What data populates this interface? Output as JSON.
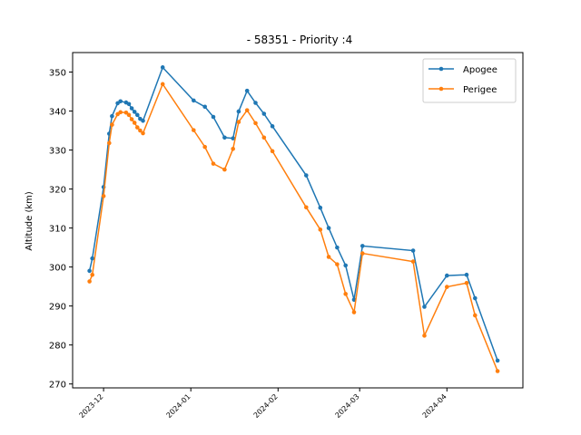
{
  "chart_data": {
    "type": "line",
    "title": "- 58351 - Priority :4",
    "xlabel": "",
    "ylabel": "Altitude (km)",
    "ylim": [
      269,
      355
    ],
    "xlim": [
      "2023-11-20",
      "2024-04-28"
    ],
    "yticks": [
      270,
      280,
      290,
      300,
      310,
      320,
      330,
      340,
      350
    ],
    "xticks": [
      {
        "date": "2023-12-01",
        "label": "2023-12"
      },
      {
        "date": "2024-01-01",
        "label": "2024-01"
      },
      {
        "date": "2024-02-01",
        "label": "2024-02"
      },
      {
        "date": "2024-03-01",
        "label": "2024-03"
      },
      {
        "date": "2024-04-01",
        "label": "2024-04"
      }
    ],
    "grid": false,
    "legend_position": "top-right",
    "series": [
      {
        "name": "Apogee",
        "color": "#1f77b4",
        "points": [
          [
            "2023-11-26",
            299.0
          ],
          [
            "2023-11-27",
            302.2
          ],
          [
            "2023-12-01",
            320.5
          ],
          [
            "2023-12-03",
            334.2
          ],
          [
            "2023-12-04",
            338.7
          ],
          [
            "2023-12-06",
            342.0
          ],
          [
            "2023-12-07",
            342.5
          ],
          [
            "2023-12-09",
            342.2
          ],
          [
            "2023-12-10",
            341.8
          ],
          [
            "2023-12-11",
            340.7
          ],
          [
            "2023-12-12",
            339.8
          ],
          [
            "2023-12-13",
            339.0
          ],
          [
            "2023-12-14",
            338.0
          ],
          [
            "2023-12-15",
            337.5
          ],
          [
            "2023-12-22",
            351.2
          ],
          [
            "2024-01-02",
            342.7
          ],
          [
            "2024-01-06",
            341.1
          ],
          [
            "2024-01-09",
            338.5
          ],
          [
            "2024-01-13",
            333.2
          ],
          [
            "2024-01-16",
            333.0
          ],
          [
            "2024-01-18",
            339.9
          ],
          [
            "2024-01-21",
            345.2
          ],
          [
            "2024-01-24",
            342.1
          ],
          [
            "2024-01-27",
            339.3
          ],
          [
            "2024-01-30",
            336.1
          ],
          [
            "2024-02-11",
            323.5
          ],
          [
            "2024-02-16",
            315.2
          ],
          [
            "2024-02-19",
            310.0
          ],
          [
            "2024-02-22",
            305.0
          ],
          [
            "2024-02-25",
            300.4
          ],
          [
            "2024-02-28",
            291.6
          ],
          [
            "2024-03-02",
            305.4
          ],
          [
            "2024-03-20",
            304.2
          ],
          [
            "2024-03-24",
            289.8
          ],
          [
            "2024-04-01",
            297.8
          ],
          [
            "2024-04-08",
            298.0
          ],
          [
            "2024-04-11",
            292.0
          ],
          [
            "2024-04-19",
            276.0
          ]
        ]
      },
      {
        "name": "Perigee",
        "color": "#ff7f0e",
        "points": [
          [
            "2023-11-26",
            296.3
          ],
          [
            "2023-11-27",
            298.0
          ],
          [
            "2023-12-01",
            318.2
          ],
          [
            "2023-12-03",
            331.8
          ],
          [
            "2023-12-04",
            336.5
          ],
          [
            "2023-12-06",
            339.2
          ],
          [
            "2023-12-07",
            339.7
          ],
          [
            "2023-12-09",
            339.6
          ],
          [
            "2023-12-10",
            339.0
          ],
          [
            "2023-12-11",
            337.9
          ],
          [
            "2023-12-12",
            337.0
          ],
          [
            "2023-12-13",
            335.8
          ],
          [
            "2023-12-14",
            335.0
          ],
          [
            "2023-12-15",
            334.3
          ],
          [
            "2023-12-22",
            346.9
          ],
          [
            "2024-01-02",
            335.1
          ],
          [
            "2024-01-06",
            330.8
          ],
          [
            "2024-01-09",
            326.5
          ],
          [
            "2024-01-13",
            325.0
          ],
          [
            "2024-01-16",
            330.3
          ],
          [
            "2024-01-18",
            337.2
          ],
          [
            "2024-01-21",
            340.2
          ],
          [
            "2024-01-24",
            336.9
          ],
          [
            "2024-01-27",
            333.2
          ],
          [
            "2024-01-30",
            329.7
          ],
          [
            "2024-02-11",
            315.3
          ],
          [
            "2024-02-16",
            309.6
          ],
          [
            "2024-02-19",
            302.6
          ],
          [
            "2024-02-22",
            300.7
          ],
          [
            "2024-02-25",
            293.1
          ],
          [
            "2024-02-28",
            288.4
          ],
          [
            "2024-03-02",
            303.5
          ],
          [
            "2024-03-20",
            301.4
          ],
          [
            "2024-03-24",
            282.4
          ],
          [
            "2024-04-01",
            294.9
          ],
          [
            "2024-04-08",
            295.9
          ],
          [
            "2024-04-11",
            287.6
          ],
          [
            "2024-04-19",
            273.3
          ]
        ]
      }
    ]
  }
}
